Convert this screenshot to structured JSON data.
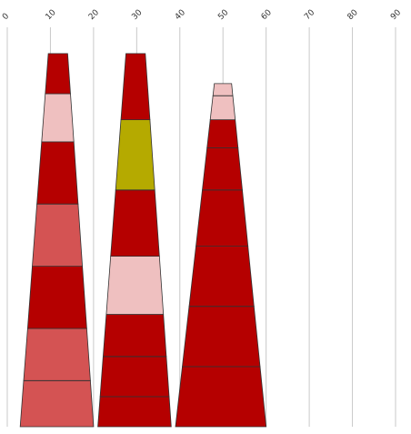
{
  "chart_data": {
    "type": "stacked-tapered-column",
    "title": "",
    "xlabel": "",
    "ylabel": "",
    "grid": true,
    "xlim": [
      0,
      90
    ],
    "x_ticks": [
      0,
      10,
      20,
      30,
      40,
      50,
      60,
      70,
      80,
      90
    ],
    "x_tick_labels": [
      "0",
      "10",
      "20",
      "30",
      "40",
      "50",
      "60",
      "70",
      "80",
      "90"
    ],
    "colors": {
      "dark_red": "#b50000",
      "salmon": "#d45353",
      "pink": "#efc0c0",
      "olive": "#b5aa00"
    },
    "stacks": [
      {
        "x_range": [
          3,
          20
        ],
        "top_x_range": [
          9.5,
          14
        ],
        "y_top": 0.93,
        "segments": [
          {
            "value": 0.115,
            "color": "salmon"
          },
          {
            "value": 0.13,
            "color": "salmon"
          },
          {
            "value": 0.155,
            "color": "dark_red"
          },
          {
            "value": 0.155,
            "color": "salmon"
          },
          {
            "value": 0.155,
            "color": "dark_red"
          },
          {
            "value": 0.12,
            "color": "pink"
          },
          {
            "value": 0.1,
            "color": "dark_red"
          }
        ]
      },
      {
        "x_range": [
          21,
          38
        ],
        "top_x_range": [
          27.5,
          32
        ],
        "y_top": 0.93,
        "segments": [
          {
            "value": 0.075,
            "color": "dark_red"
          },
          {
            "value": 0.1,
            "color": "dark_red"
          },
          {
            "value": 0.105,
            "color": "dark_red"
          },
          {
            "value": 0.145,
            "color": "pink"
          },
          {
            "value": 0.165,
            "color": "dark_red"
          },
          {
            "value": 0.175,
            "color": "olive"
          },
          {
            "value": 0.165,
            "color": "dark_red"
          }
        ]
      },
      {
        "x_range": [
          39,
          60
        ],
        "top_x_range": [
          48,
          52
        ],
        "y_top": 0.855,
        "segments": [
          {
            "value": 0.15,
            "color": "dark_red"
          },
          {
            "value": 0.15,
            "color": "dark_red"
          },
          {
            "value": 0.15,
            "color": "dark_red"
          },
          {
            "value": 0.14,
            "color": "dark_red"
          },
          {
            "value": 0.105,
            "color": "dark_red"
          },
          {
            "value": 0.07,
            "color": "dark_red"
          },
          {
            "value": 0.06,
            "color": "pink"
          },
          {
            "value": 0.03,
            "color": "pink"
          }
        ]
      }
    ]
  }
}
